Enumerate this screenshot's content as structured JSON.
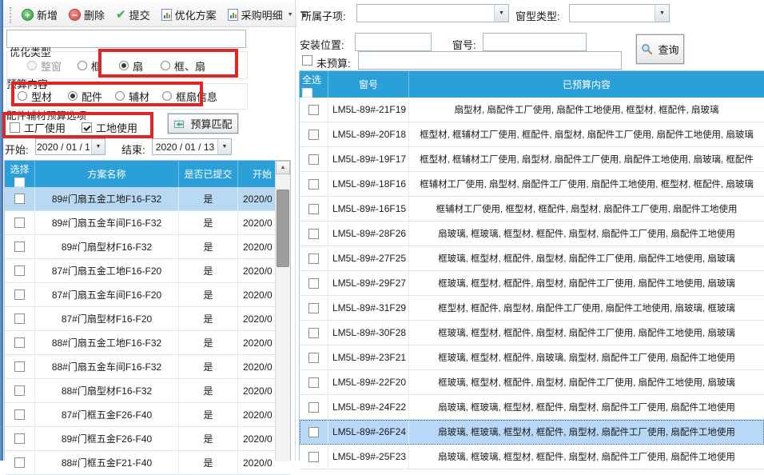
{
  "colors": {
    "accent_blue": "#2B9FD8",
    "selected_row_left": "#B9D8F2",
    "selected_row_right": "#B9D8F8",
    "annotation_red": "#E02525"
  },
  "toolbar": {
    "new_label": "新增",
    "delete_label": "删除",
    "submit_label": "提交",
    "opt_plan_label": "优化方案",
    "purchase_detail_label": "采购明细"
  },
  "left_panel": {
    "search_value": "",
    "opt_type": {
      "label": "优化类型",
      "options": [
        {
          "label": "整窗",
          "checked": false,
          "disabled": true
        },
        {
          "label": "框",
          "checked": false
        },
        {
          "label": "扇",
          "checked": true
        },
        {
          "label": "框、扇",
          "checked": false
        }
      ]
    },
    "budget_content": {
      "label": "预算内容",
      "options": [
        {
          "label": "型材",
          "checked": false
        },
        {
          "label": "配件",
          "checked": true
        },
        {
          "label": "辅材",
          "checked": false
        },
        {
          "label": "框扇信息",
          "checked": false
        }
      ]
    },
    "acc_options": {
      "label": "配件辅材预算选项",
      "checkboxes": [
        {
          "label": "工厂使用",
          "checked": false
        },
        {
          "label": "工地使用",
          "checked": true
        }
      ]
    },
    "match_button": "预算匹配",
    "date_range": {
      "start_label": "开始:",
      "start_value": "2020 / 01 / 1",
      "end_label": "结束:",
      "end_value": "2020 / 01 / 13"
    },
    "table": {
      "col_select": "选择",
      "col_name": "方案名称",
      "col_submitted": "是否已提交",
      "col_start": "开始",
      "rows": [
        {
          "name": "89#门扇五金工地F16-F32",
          "submitted": "是",
          "start": "2020/0",
          "selected": true
        },
        {
          "name": "89#门扇五金车间F16-F32",
          "submitted": "是",
          "start": "2020/0",
          "selected": false
        },
        {
          "name": "89#门扇型材F16-F32",
          "submitted": "是",
          "start": "2020/0",
          "selected": false
        },
        {
          "name": "87#门扇五金工地F16-F20",
          "submitted": "是",
          "start": "2020/0",
          "selected": false
        },
        {
          "name": "87#门扇五金车间F16-F20",
          "submitted": "是",
          "start": "2020/0",
          "selected": false
        },
        {
          "name": "87#门扇型材F16-F20",
          "submitted": "是",
          "start": "2020/0",
          "selected": false
        },
        {
          "name": "88#门扇五金工地F16-F32",
          "submitted": "是",
          "start": "2020/0",
          "selected": false
        },
        {
          "name": "88#门扇五金车间F16-F32",
          "submitted": "是",
          "start": "2020/0",
          "selected": false
        },
        {
          "name": "88#门扇型材F16-F32",
          "submitted": "是",
          "start": "2020/0",
          "selected": false
        },
        {
          "name": "87#门框五金F26-F40",
          "submitted": "是",
          "start": "2020/0",
          "selected": false
        },
        {
          "name": "89#门框五金F26-F40",
          "submitted": "是",
          "start": "2020/0",
          "selected": false
        },
        {
          "name": "88#门框五金F21-F40",
          "submitted": "是",
          "start": "2020/0",
          "selected": false
        }
      ]
    }
  },
  "right_panel": {
    "filters": {
      "sub_item_label": "所属子项:",
      "window_type_label": "窗型类型:",
      "install_pos_label": "安装位置:",
      "window_no_label": "窗号:",
      "no_budget_label": "未预算:",
      "no_budget_checked": false,
      "query_button": "查询"
    },
    "table": {
      "col_select": "全选",
      "col_window_no": "窗号",
      "col_budgeted": "已预算内容",
      "rows": [
        {
          "no": "LM5L-89#-21F19",
          "content": "扇型材, 扇配件工厂使用, 扇配件工地使用, 框型材, 框配件, 扇玻璃",
          "selected": false
        },
        {
          "no": "LM5L-89#-20F18",
          "content": "框型材, 框辅材工厂使用, 框配件, 扇型材, 扇配件工厂使用, 扇配件工地使用, 扇玻璃",
          "selected": false
        },
        {
          "no": "LM5L-89#-19F17",
          "content": "框型材, 框辅材工厂使用, 扇型材, 扇配件工厂使用, 扇配件工地使用, 扇玻璃, 框配件",
          "selected": false
        },
        {
          "no": "LM5L-89#-18F16",
          "content": "框辅材工厂使用, 扇型材, 扇配件工厂使用, 扇配件工地使用, 框型材, 框配件, 扇玻璃",
          "selected": false
        },
        {
          "no": "LM5L-89#-16F15",
          "content": "框辅材工厂使用, 框型材, 框配件, 扇型材, 扇配件工厂使用, 扇配件工地使用",
          "selected": false
        },
        {
          "no": "LM5L-89#-28F26",
          "content": "扇玻璃, 框玻璃, 框型材, 框配件, 扇型材, 扇配件工厂使用, 扇配件工地使用",
          "selected": false
        },
        {
          "no": "LM5L-89#-27F25",
          "content": "框玻璃, 框型材, 框配件, 扇型材, 扇配件工厂使用, 扇配件工地使用, 扇玻璃",
          "selected": false
        },
        {
          "no": "LM5L-89#-29F27",
          "content": "框玻璃, 框型材, 框配件, 扇型材, 扇配件工厂使用, 扇配件工地使用, 扇玻璃",
          "selected": false
        },
        {
          "no": "LM5L-89#-31F29",
          "content": "框型材, 框配件, 扇型材, 扇配件工厂使用, 扇配件工地使用, 扇玻璃, 框玻璃",
          "selected": false
        },
        {
          "no": "LM5L-89#-30F28",
          "content": "框玻璃, 框型材, 框配件, 扇型材, 扇配件工厂使用, 扇配件工地使用, 扇玻璃",
          "selected": false
        },
        {
          "no": "LM5L-89#-23F21",
          "content": "框玻璃, 框型材, 框配件, 扇玻璃, 扇型材, 扇配件工厂使用, 扇配件工地使用",
          "selected": false
        },
        {
          "no": "LM5L-89#-22F20",
          "content": "框玻璃, 框型材, 框配件, 扇型材, 扇配件工厂使用, 扇配件工地使用, 扇玻璃",
          "selected": false
        },
        {
          "no": "LM5L-89#-24F22",
          "content": "扇玻璃, 框玻璃, 框型材, 框配件, 扇型材, 扇配件工厂使用, 扇配件工地使用",
          "selected": false
        },
        {
          "no": "LM5L-89#-26F24",
          "content": "扇玻璃, 框玻璃, 框型材, 框配件, 扇型材, 扇配件工厂使用, 扇配件工地使用",
          "selected": true
        },
        {
          "no": "LM5L-89#-25F23",
          "content": "扇玻璃, 框玻璃, 框型材, 框配件, 扇型材, 扇配件工厂使用, 扇配件工地使用",
          "selected": false
        }
      ]
    }
  }
}
